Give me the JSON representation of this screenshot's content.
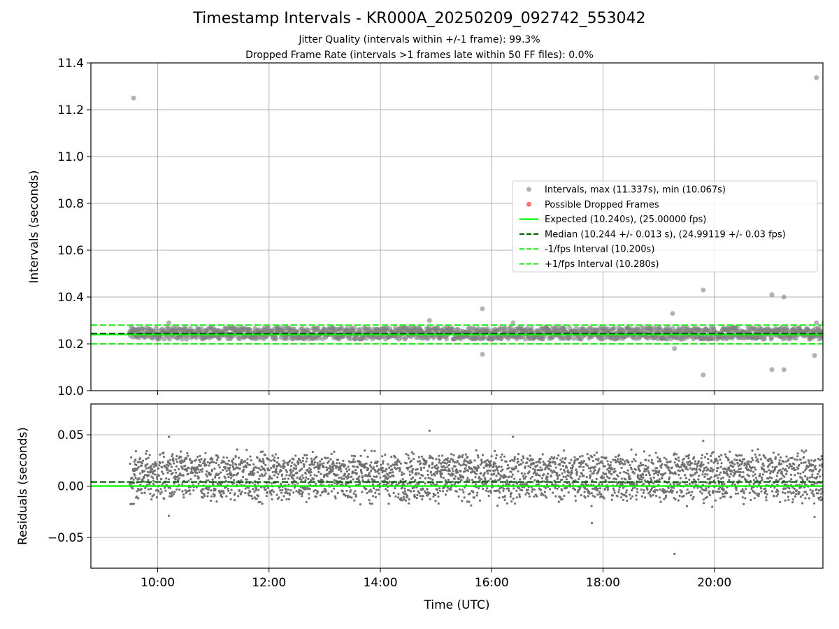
{
  "title": "Timestamp Intervals - KR000A_20250209_092742_553042",
  "subtitle_1": "Jitter Quality (intervals within +/-1 frame): 99.3%",
  "subtitle_2": "Dropped Frame Rate (intervals >1 frames late within 50 FF files): 0.0%",
  "colors": {
    "points": "#808080",
    "dropped": "#ff4d4d",
    "expected": "#00ff00",
    "median": "#006400",
    "fps_bounds": "#22ee22",
    "grid": "#b0b0b0"
  },
  "chart_data": [
    {
      "type": "scatter",
      "panel": "intervals",
      "xlabel": "",
      "ylabel": "Intervals (seconds)",
      "x_range_hours": [
        8.8,
        21.95
      ],
      "ylim": [
        10.0,
        11.4
      ],
      "yticks": [
        "10.0",
        "10.2",
        "10.4",
        "10.6",
        "10.8",
        "11.0",
        "11.2",
        "11.4"
      ],
      "grid": true,
      "legend_position": "center-right",
      "legend": [
        "Intervals, max (11.337s), min (10.067s)",
        "Possible Dropped Frames",
        "Expected (10.240s), (25.00000 fps)",
        "Median (10.244 +/- 0.013 s), (24.99119 +/- 0.03 fps)",
        "-1/fps Interval (10.200s)",
        "+1/fps Interval (10.280s)"
      ],
      "lines": {
        "expected": 10.24,
        "median": 10.244,
        "minus_1_fps": 10.2,
        "plus_1_fps": 10.28
      },
      "data_span_hours": [
        9.5,
        21.95
      ],
      "band": [
        10.22,
        10.27
      ],
      "outliers": [
        {
          "x": "09:34",
          "y": 11.25
        },
        {
          "x": "21:50",
          "y": 11.337
        },
        {
          "x": "19:48",
          "y": 10.43
        },
        {
          "x": "21:02",
          "y": 10.41
        },
        {
          "x": "21:15",
          "y": 10.4
        },
        {
          "x": "15:50",
          "y": 10.35
        },
        {
          "x": "19:15",
          "y": 10.33
        },
        {
          "x": "14:53",
          "y": 10.3
        },
        {
          "x": "21:50",
          "y": 10.29
        },
        {
          "x": "10:12",
          "y": 10.29
        },
        {
          "x": "16:23",
          "y": 10.29
        },
        {
          "x": "21:58",
          "y": 10.29
        },
        {
          "x": "15:50",
          "y": 10.155
        },
        {
          "x": "21:48",
          "y": 10.15
        },
        {
          "x": "19:17",
          "y": 10.18
        },
        {
          "x": "21:02",
          "y": 10.09
        },
        {
          "x": "21:15",
          "y": 10.09
        },
        {
          "x": "19:48",
          "y": 10.067
        }
      ]
    },
    {
      "type": "scatter",
      "panel": "residuals",
      "xlabel": "Time (UTC)",
      "ylabel": "Residuals (seconds)",
      "x_range_hours": [
        8.8,
        21.95
      ],
      "xticks": [
        "10:00",
        "12:00",
        "14:00",
        "16:00",
        "18:00",
        "20:00"
      ],
      "ylim": [
        -0.08,
        0.08
      ],
      "yticks": [
        "−0.05",
        "0.00",
        "0.05"
      ],
      "grid": true,
      "lines": {
        "expected": 0.0,
        "median": 0.004
      },
      "data_span_hours": [
        9.5,
        21.95
      ],
      "bands": [
        {
          "center": 0.0,
          "spread": 0.008
        },
        {
          "center": 0.02,
          "spread": 0.006
        }
      ],
      "outliers": [
        {
          "x": "14:53",
          "y": 0.054
        },
        {
          "x": "10:12",
          "y": 0.048
        },
        {
          "x": "16:23",
          "y": 0.048
        },
        {
          "x": "21:58",
          "y": 0.049
        },
        {
          "x": "19:48",
          "y": 0.044
        },
        {
          "x": "17:48",
          "y": -0.036
        },
        {
          "x": "19:17",
          "y": -0.066
        },
        {
          "x": "21:48",
          "y": -0.03
        },
        {
          "x": "10:12",
          "y": -0.029
        }
      ]
    }
  ]
}
